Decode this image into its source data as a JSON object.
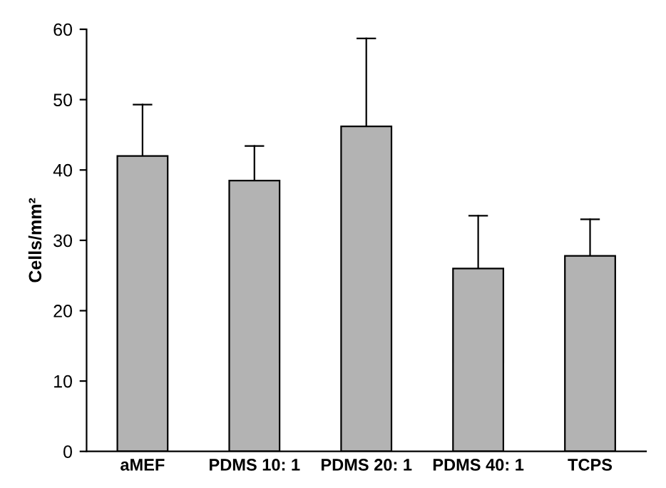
{
  "chart_data": {
    "type": "bar",
    "ylabel": "Cells/mm²",
    "categories": [
      "aMEF",
      "PDMS 10: 1",
      "PDMS 20: 1",
      "PDMS 40: 1",
      "TCPS"
    ],
    "values": [
      42,
      38.5,
      46.2,
      26,
      27.8
    ],
    "errors": [
      [
        42,
        49.3
      ],
      [
        38.5,
        43.4
      ],
      [
        46.2,
        58.7
      ],
      [
        26,
        33.5
      ],
      [
        27.8,
        33
      ]
    ],
    "color": "#b3b3b3",
    "ylim": [
      0,
      60
    ],
    "yticks": [
      0,
      10,
      20,
      30,
      40,
      50,
      60
    ],
    "grid": false,
    "legend": false
  }
}
